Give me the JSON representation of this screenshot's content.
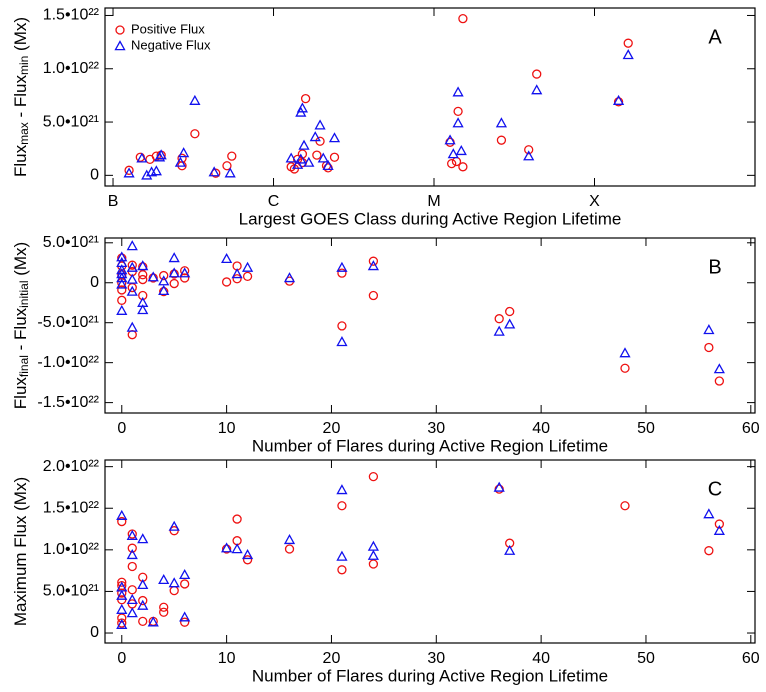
{
  "chart_data": [
    {
      "type": "scatter",
      "panel_label": "A",
      "x_label": "Largest GOES Class during Active Region Lifetime",
      "y_label": [
        "Flux",
        "max",
        " - Flux",
        "min",
        " (Mx)"
      ],
      "xlim": [
        -0.05,
        4.0
      ],
      "xticks": [
        {
          "value": 0,
          "label": "B"
        },
        {
          "value": 1,
          "label": "C"
        },
        {
          "value": 2,
          "label": "M"
        },
        {
          "value": 3,
          "label": "X"
        }
      ],
      "ylim": [
        -1e+21,
        1.57e+22
      ],
      "yticks": [
        0,
        {
          "value": 5e+21,
          "label": "5.0•10²¹"
        },
        {
          "value": 1e+22,
          "label": "1.0•10²²"
        },
        {
          "value": 1.5e+22,
          "label": "1.5•10²²"
        }
      ],
      "legend": "top-left",
      "series": [
        {
          "name": "Positive Flux",
          "color": "#ee1111",
          "marker": "circle",
          "x": [
            0.1,
            0.17,
            0.23,
            0.27,
            0.3,
            0.43,
            0.43,
            0.51,
            0.64,
            0.71,
            0.74,
            1.11,
            1.13,
            1.15,
            1.18,
            1.18,
            1.2,
            1.27,
            1.29,
            1.33,
            1.34,
            1.38,
            2.1,
            2.11,
            2.14,
            2.15,
            2.18,
            2.18,
            2.42,
            2.59,
            2.64,
            3.15,
            3.21
          ],
          "values": [
            4.7e+20,
            1.7e+21,
            1.5e+21,
            1.8e+21,
            1.9e+21,
            9e+20,
            1.6e+21,
            3.9e+21,
            2e+20,
            9e+20,
            1.8e+21,
            8e+20,
            6e+20,
            1.5e+21,
            1.2e+21,
            2e+21,
            7.2e+21,
            1.9e+21,
            3.2e+21,
            9e+20,
            7e+20,
            1.7e+21,
            3.1e+21,
            1.1e+21,
            1.3e+21,
            6e+21,
            8e+20,
            1.47e+22,
            3.3e+21,
            2.4e+21,
            9.5e+21,
            6.9e+21,
            1.24e+22
          ]
        },
        {
          "name": "Negative Flux",
          "color": "#1111ee",
          "marker": "triangle",
          "x": [
            0.1,
            0.18,
            0.21,
            0.24,
            0.27,
            0.29,
            0.3,
            0.42,
            0.44,
            0.51,
            0.63,
            0.73,
            1.11,
            1.15,
            1.17,
            1.18,
            1.19,
            1.17,
            1.22,
            1.26,
            1.29,
            1.31,
            1.38,
            1.34,
            2.1,
            2.12,
            2.15,
            2.15,
            2.17,
            2.42,
            2.59,
            2.64,
            3.15,
            3.21
          ],
          "values": [
            2e+20,
            1.6e+21,
            0,
            3e+20,
            4e+20,
            1.7e+21,
            1.9e+21,
            1.2e+21,
            2.1e+21,
            7e+21,
            3e+20,
            2e+20,
            1.6e+21,
            1e+21,
            5.9e+21,
            6.3e+21,
            2.8e+21,
            1.5e+21,
            1.2e+21,
            3.6e+21,
            4.7e+21,
            1.6e+21,
            3.5e+21,
            9e+20,
            3.3e+21,
            2e+21,
            4.9e+21,
            7.8e+21,
            2.3e+21,
            4.9e+21,
            1.8e+21,
            8e+21,
            7e+21,
            1.13e+22
          ]
        }
      ]
    },
    {
      "type": "scatter",
      "panel_label": "B",
      "x_label": "Number of Flares during Active Region Lifetime",
      "y_label": [
        "Flux",
        "final",
        " - Flux",
        "initial",
        " (Mx)"
      ],
      "xlim": [
        -1.6,
        60.4
      ],
      "xticks": [
        0,
        10,
        20,
        30,
        40,
        50,
        60
      ],
      "ylim": [
        -1.63e+22,
        5.6e+21
      ],
      "yticks": [
        {
          "value": -1.5e+22,
          "label": "-1.5•10²²"
        },
        {
          "value": -1e+22,
          "label": "-1.0•10²²"
        },
        {
          "value": -5e+21,
          "label": "-5.0•10²¹"
        },
        0,
        {
          "value": 5e+21,
          "label": "5.0•10²¹"
        }
      ],
      "series": [
        {
          "color": "#ee1111",
          "marker": "circle",
          "x": [
            0,
            0,
            0,
            0,
            0,
            0,
            1,
            1,
            1,
            1,
            2,
            2,
            2,
            2,
            3,
            4,
            4,
            5,
            5,
            6,
            6,
            10,
            11,
            11,
            12,
            16,
            21,
            21,
            24,
            24,
            36,
            37,
            48,
            56,
            57
          ],
          "values": [
            3.1e+21,
            2.1e+21,
            1e+21,
            0,
            -9e+20,
            -2.2e+21,
            2.2e+21,
            1.4e+21,
            -6e+20,
            -6.5e+21,
            2e+21,
            1e+21,
            -1.6e+21,
            4e+20,
            6e+20,
            9e+20,
            -1.1e+21,
            1.1e+21,
            -1e+20,
            1.5e+21,
            6e+20,
            1e+20,
            2.1e+21,
            5e+20,
            8e+20,
            2e+20,
            1.2e+21,
            -5.4e+21,
            2.7e+21,
            -1.6e+21,
            -4.5e+21,
            -3.6e+21,
            -1.07e+22,
            -8.1e+21,
            -1.23e+22
          ]
        },
        {
          "color": "#1111ee",
          "marker": "triangle",
          "x": [
            0,
            0,
            0,
            0,
            0,
            0,
            0,
            1,
            1,
            1,
            1,
            1,
            2,
            2,
            2,
            3,
            4,
            4,
            5,
            5,
            6,
            10,
            11,
            12,
            16,
            21,
            21,
            24,
            36,
            37,
            48,
            56,
            57
          ],
          "values": [
            3.2e+21,
            2.5e+21,
            1.6e+21,
            1.1e+21,
            6e+20,
            -2e+20,
            -3.5e+21,
            4.6e+21,
            1.9e+21,
            4e+20,
            -1.1e+21,
            -5.6e+21,
            2.1e+21,
            -2.5e+21,
            -3.4e+21,
            7e+20,
            2e+20,
            -1e+21,
            3.1e+21,
            1.2e+21,
            1.2e+21,
            3e+21,
            1.1e+21,
            1.9e+21,
            6e+20,
            1.9e+21,
            -7.4e+21,
            2.1e+21,
            -6.1e+21,
            -5.2e+21,
            -8.8e+21,
            -5.9e+21,
            -1.08e+22
          ]
        }
      ]
    },
    {
      "type": "scatter",
      "panel_label": "C",
      "x_label": "Number of Flares during Active Region Lifetime",
      "y_label": [
        "Maximum Flux (Mx)"
      ],
      "xlim": [
        -1.6,
        60.4
      ],
      "xticks": [
        0,
        10,
        20,
        30,
        40,
        50,
        60
      ],
      "ylim": [
        -1.2e+21,
        2.08e+22
      ],
      "yticks": [
        0,
        {
          "value": 5e+21,
          "label": "5.0•10²¹"
        },
        {
          "value": 1e+22,
          "label": "1.0•10²²"
        },
        {
          "value": 1.5e+22,
          "label": "1.5•10²²"
        },
        {
          "value": 2e+22,
          "label": "2.0•10²²"
        }
      ],
      "series": [
        {
          "color": "#ee1111",
          "marker": "circle",
          "x": [
            0,
            0,
            0,
            0,
            0,
            0,
            0,
            1,
            1,
            1,
            1,
            1,
            2,
            2,
            2,
            3,
            4,
            4,
            5,
            5,
            6,
            6,
            10,
            11,
            11,
            12,
            16,
            21,
            21,
            24,
            24,
            36,
            37,
            48,
            56,
            57
          ],
          "values": [
            1.34e+22,
            6.1e+21,
            5.7e+21,
            4.8e+21,
            4e+21,
            1.8e+21,
            1.2e+21,
            1.19e+22,
            1.02e+22,
            8e+21,
            5.2e+21,
            3.5e+21,
            6.7e+21,
            3.9e+21,
            1.4e+21,
            1.4e+21,
            3.1e+21,
            2.5e+21,
            1.23e+22,
            5.1e+21,
            5.9e+21,
            1.3e+21,
            1.01e+22,
            1.37e+22,
            1.11e+22,
            8.8e+21,
            1.01e+22,
            1.53e+22,
            7.6e+21,
            1.88e+22,
            8.3e+21,
            1.73e+22,
            1.08e+22,
            1.53e+22,
            9.9e+21,
            1.31e+22
          ]
        },
        {
          "color": "#1111ee",
          "marker": "triangle",
          "x": [
            0,
            0,
            0,
            0,
            0,
            1,
            1,
            1,
            1,
            2,
            2,
            2,
            3,
            4,
            5,
            5,
            6,
            6,
            10,
            11,
            12,
            16,
            21,
            21,
            24,
            24,
            36,
            37,
            56,
            57
          ],
          "values": [
            1.41e+22,
            5.5e+21,
            4.5e+21,
            2.8e+21,
            1e+21,
            1.17e+22,
            9.4e+21,
            4e+21,
            2.4e+21,
            1.13e+22,
            5.8e+21,
            3.3e+21,
            1.3e+21,
            6.4e+21,
            1.28e+22,
            6e+21,
            7e+21,
            1.9e+21,
            1.02e+22,
            1.01e+22,
            9.4e+21,
            1.12e+22,
            1.72e+22,
            9.2e+21,
            1.04e+22,
            9.3e+21,
            1.75e+22,
            9.9e+21,
            1.43e+22,
            1.23e+22
          ]
        }
      ]
    }
  ]
}
